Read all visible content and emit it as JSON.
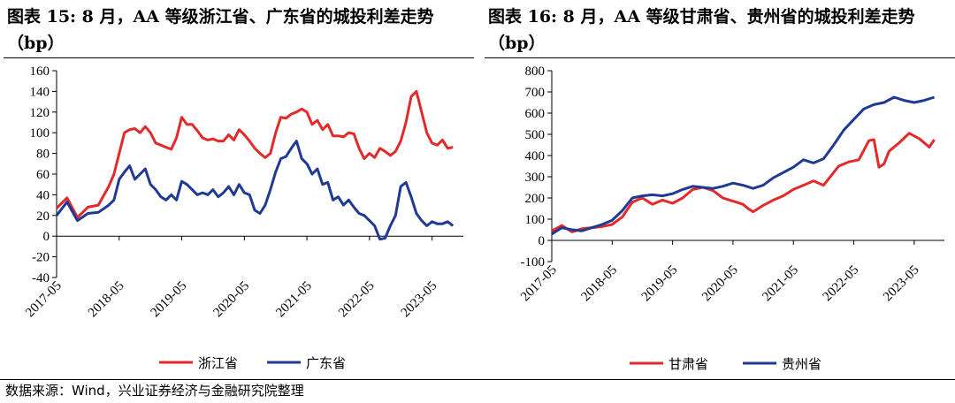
{
  "footer": {
    "source": "数据来源：Wind，兴业证券经济与金融研究院整理"
  },
  "chart_data": [
    {
      "type": "line",
      "title": "图表 15:  8 月，AA 等级浙江省、广东省的城投利差走势（bp）",
      "xlabel": "",
      "ylabel": "",
      "ylim": [
        -40,
        160
      ],
      "yticks": [
        -40,
        -20,
        0,
        20,
        40,
        60,
        80,
        100,
        120,
        140,
        160
      ],
      "xlim": [
        "2017-05",
        "2023-11"
      ],
      "xticks": [
        "2017-05",
        "2018-05",
        "2019-05",
        "2020-05",
        "2021-05",
        "2022-05",
        "2023-05"
      ],
      "grid": false,
      "legend": "bottom",
      "series": [
        {
          "name": "浙江省",
          "color": "#e32a2a",
          "x": [
            "2017-05",
            "2017-07",
            "2017-09",
            "2017-11",
            "2018-01",
            "2018-03",
            "2018-04",
            "2018-05",
            "2018-06",
            "2018-07",
            "2018-08",
            "2018-09",
            "2018-10",
            "2018-11",
            "2018-12",
            "2019-01",
            "2019-02",
            "2019-03",
            "2019-04",
            "2019-05",
            "2019-06",
            "2019-07",
            "2019-08",
            "2019-09",
            "2019-10",
            "2019-11",
            "2019-12",
            "2020-01",
            "2020-02",
            "2020-03",
            "2020-04",
            "2020-05",
            "2020-06",
            "2020-07",
            "2020-08",
            "2020-09",
            "2020-10",
            "2020-11",
            "2020-12",
            "2021-01",
            "2021-02",
            "2021-03",
            "2021-04",
            "2021-05",
            "2021-06",
            "2021-07",
            "2021-08",
            "2021-09",
            "2021-10",
            "2021-11",
            "2021-12",
            "2022-01",
            "2022-02",
            "2022-03",
            "2022-04",
            "2022-05",
            "2022-06",
            "2022-07",
            "2022-08",
            "2022-09",
            "2022-10",
            "2022-11",
            "2022-12",
            "2023-01",
            "2023-02",
            "2023-03",
            "2023-04",
            "2023-05",
            "2023-06",
            "2023-07",
            "2023-08",
            "2023-09"
          ],
          "values": [
            27,
            37,
            18,
            28,
            30,
            48,
            60,
            80,
            100,
            103,
            104,
            100,
            106,
            100,
            90,
            88,
            86,
            84,
            95,
            115,
            108,
            108,
            102,
            95,
            93,
            94,
            92,
            92,
            98,
            93,
            103,
            98,
            92,
            85,
            80,
            76,
            80,
            100,
            115,
            114,
            118,
            120,
            123,
            120,
            108,
            112,
            103,
            108,
            97,
            97,
            96,
            100,
            99,
            85,
            75,
            80,
            76,
            85,
            82,
            78,
            82,
            92,
            110,
            135,
            140,
            120,
            100,
            90,
            88,
            93,
            85,
            86
          ]
        },
        {
          "name": "广东省",
          "color": "#1f3a93",
          "x": [
            "2017-05",
            "2017-07",
            "2017-09",
            "2017-11",
            "2018-01",
            "2018-03",
            "2018-04",
            "2018-05",
            "2018-06",
            "2018-07",
            "2018-08",
            "2018-09",
            "2018-10",
            "2018-11",
            "2018-12",
            "2019-01",
            "2019-02",
            "2019-03",
            "2019-04",
            "2019-05",
            "2019-06",
            "2019-07",
            "2019-08",
            "2019-09",
            "2019-10",
            "2019-11",
            "2019-12",
            "2020-01",
            "2020-02",
            "2020-03",
            "2020-04",
            "2020-05",
            "2020-06",
            "2020-07",
            "2020-08",
            "2020-09",
            "2020-10",
            "2020-11",
            "2020-12",
            "2021-01",
            "2021-02",
            "2021-03",
            "2021-04",
            "2021-05",
            "2021-06",
            "2021-07",
            "2021-08",
            "2021-09",
            "2021-10",
            "2021-11",
            "2021-12",
            "2022-01",
            "2022-02",
            "2022-03",
            "2022-04",
            "2022-05",
            "2022-06",
            "2022-07",
            "2022-08",
            "2022-09",
            "2022-10",
            "2022-11",
            "2022-12",
            "2023-01",
            "2023-02",
            "2023-03",
            "2023-04",
            "2023-05",
            "2023-06",
            "2023-07",
            "2023-08",
            "2023-09"
          ],
          "values": [
            20,
            33,
            15,
            22,
            23,
            30,
            35,
            55,
            62,
            68,
            55,
            60,
            65,
            50,
            45,
            38,
            35,
            40,
            35,
            53,
            50,
            45,
            40,
            42,
            40,
            45,
            38,
            42,
            48,
            40,
            50,
            42,
            40,
            25,
            22,
            30,
            45,
            62,
            75,
            77,
            85,
            92,
            75,
            70,
            60,
            65,
            50,
            52,
            35,
            38,
            30,
            35,
            28,
            22,
            20,
            15,
            10,
            -3,
            -2,
            10,
            20,
            48,
            52,
            38,
            22,
            15,
            10,
            14,
            12,
            12,
            14,
            10
          ]
        }
      ]
    },
    {
      "type": "line",
      "title": "图表 16:  8 月，AA 等级甘肃省、贵州省的城投利差走势（bp）",
      "xlabel": "",
      "ylabel": "",
      "ylim": [
        -100,
        800
      ],
      "yticks": [
        -100,
        0,
        100,
        200,
        300,
        400,
        500,
        600,
        700,
        800
      ],
      "xlim": [
        "2017-05",
        "2023-11"
      ],
      "xticks": [
        "2017-05",
        "2018-05",
        "2019-05",
        "2020-05",
        "2021-05",
        "2022-05",
        "2023-05"
      ],
      "grid": false,
      "legend": "bottom",
      "series": [
        {
          "name": "甘肃省",
          "color": "#e32a2a",
          "x": [
            "2017-05",
            "2017-07",
            "2017-09",
            "2017-11",
            "2018-01",
            "2018-03",
            "2018-05",
            "2018-07",
            "2018-09",
            "2018-11",
            "2019-01",
            "2019-03",
            "2019-05",
            "2019-07",
            "2019-09",
            "2019-11",
            "2020-01",
            "2020-03",
            "2020-05",
            "2020-07",
            "2020-08",
            "2020-09",
            "2020-11",
            "2021-01",
            "2021-03",
            "2021-05",
            "2021-07",
            "2021-09",
            "2021-11",
            "2022-01",
            "2022-02",
            "2022-04",
            "2022-06",
            "2022-08",
            "2022-09",
            "2022-10",
            "2022-11",
            "2022-12",
            "2023-02",
            "2023-04",
            "2023-06",
            "2023-08",
            "2023-09"
          ],
          "values": [
            45,
            70,
            40,
            55,
            60,
            65,
            75,
            110,
            180,
            200,
            170,
            190,
            175,
            200,
            240,
            250,
            235,
            200,
            185,
            170,
            150,
            135,
            165,
            190,
            210,
            240,
            260,
            280,
            260,
            320,
            350,
            370,
            380,
            470,
            475,
            345,
            360,
            420,
            460,
            505,
            480,
            440,
            475
          ]
        },
        {
          "name": "贵州省",
          "color": "#1f3a93",
          "x": [
            "2017-05",
            "2017-07",
            "2017-09",
            "2017-11",
            "2018-01",
            "2018-03",
            "2018-05",
            "2018-07",
            "2018-09",
            "2018-11",
            "2019-01",
            "2019-03",
            "2019-05",
            "2019-07",
            "2019-09",
            "2019-11",
            "2020-01",
            "2020-03",
            "2020-05",
            "2020-07",
            "2020-09",
            "2020-11",
            "2021-01",
            "2021-03",
            "2021-05",
            "2021-07",
            "2021-09",
            "2021-11",
            "2022-01",
            "2022-03",
            "2022-05",
            "2022-07",
            "2022-09",
            "2022-11",
            "2023-01",
            "2023-03",
            "2023-05",
            "2023-07",
            "2023-09"
          ],
          "values": [
            30,
            60,
            50,
            45,
            60,
            75,
            95,
            140,
            200,
            210,
            215,
            210,
            220,
            240,
            255,
            250,
            245,
            255,
            270,
            260,
            245,
            260,
            295,
            320,
            345,
            380,
            365,
            385,
            450,
            520,
            570,
            620,
            640,
            650,
            675,
            660,
            650,
            660,
            675
          ]
        }
      ]
    }
  ]
}
